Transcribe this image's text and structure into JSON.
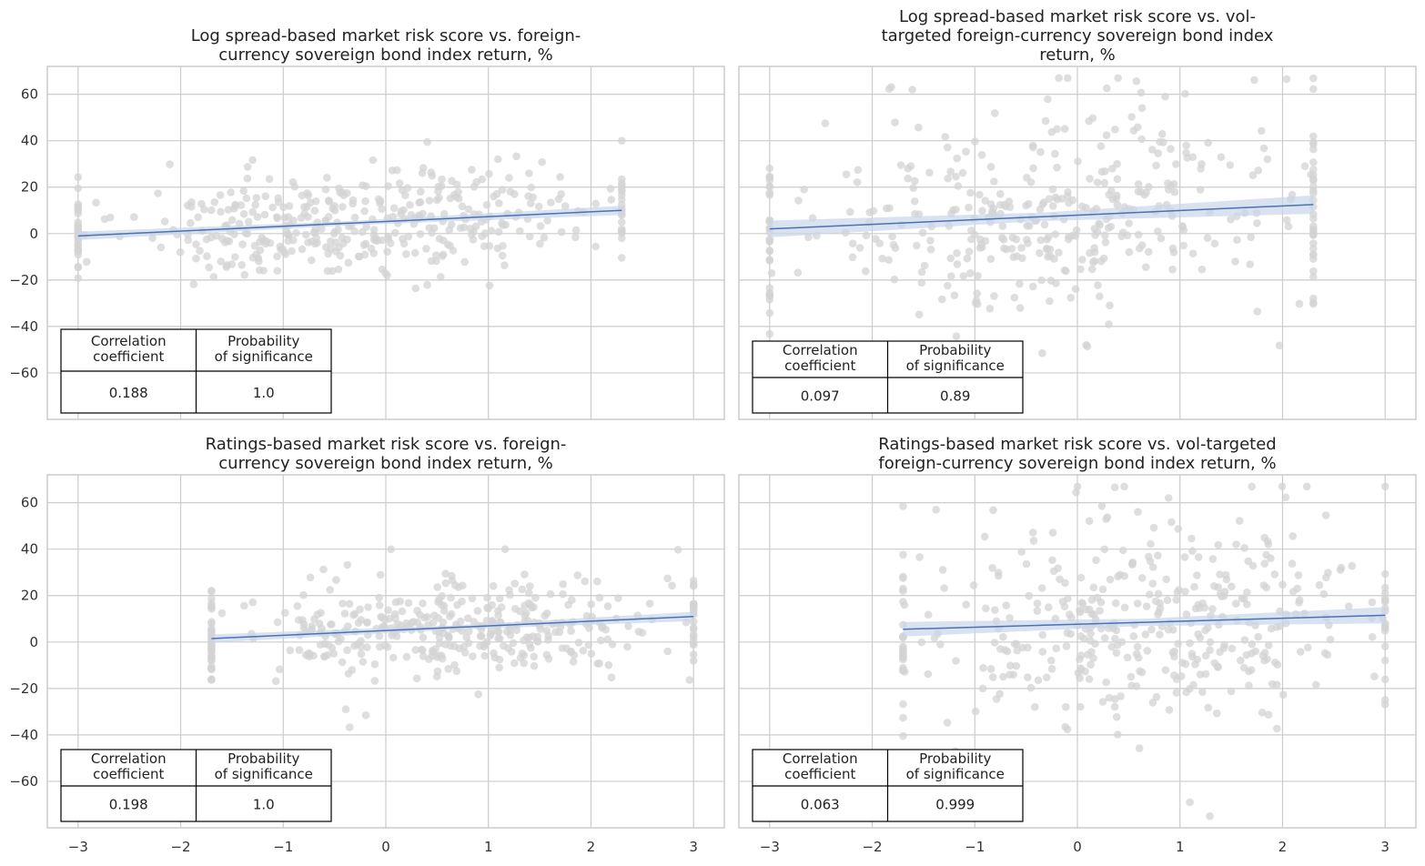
{
  "chart_data": [
    {
      "type": "scatter",
      "title": "Log spread-based market risk score vs. foreign-currency sovereign bond index return, %",
      "title_lines": [
        "Log spread-based market risk score vs. foreign-",
        "currency sovereign bond index return, %"
      ],
      "xlabel": "",
      "ylabel": "",
      "xlim": [
        -3.3,
        3.3
      ],
      "ylim": [
        -80,
        72
      ],
      "xticks": [
        -3,
        -2,
        -1,
        0,
        1,
        2,
        3
      ],
      "yticks": [
        -60,
        -40,
        -20,
        0,
        20,
        40,
        60
      ],
      "grid": true,
      "x_range": [
        -3,
        2.3
      ],
      "regression": {
        "x": [
          -3,
          2.3
        ],
        "y": [
          -1,
          10
        ],
        "ci": 2
      },
      "stats_table": {
        "headers": [
          [
            "Correlation",
            "coefficient"
          ],
          [
            "Probability",
            "of significance"
          ]
        ],
        "values": [
          "0.188",
          "1.0"
        ],
        "placement": "bottom-left"
      },
      "seed": 11
    },
    {
      "type": "scatter",
      "title": "Log spread-based market risk score vs. vol-targeted foreign-currency sovereign bond index return, %",
      "title_lines": [
        "Log spread-based market risk score vs. vol-",
        "targeted foreign-currency sovereign bond index",
        "return, %"
      ],
      "xlabel": "",
      "ylabel": "",
      "xlim": [
        -3.3,
        3.3
      ],
      "ylim": [
        -80,
        72
      ],
      "xticks": [
        -3,
        -2,
        -1,
        0,
        1,
        2,
        3
      ],
      "yticks": [
        -60,
        -40,
        -20,
        0,
        20,
        40,
        60
      ],
      "grid": true,
      "x_range": [
        -3,
        2.3
      ],
      "regression": {
        "x": [
          -3,
          2.3
        ],
        "y": [
          2,
          12.5
        ],
        "ci": 4
      },
      "stats_table": {
        "headers": [
          [
            "Correlation",
            "coefficient"
          ],
          [
            "Probability",
            "of significance"
          ]
        ],
        "values": [
          "0.097",
          "0.89"
        ],
        "placement": "bottom-left"
      },
      "seed": 23
    },
    {
      "type": "scatter",
      "title": "Ratings-based market risk score vs. foreign-currency sovereign bond index return, %",
      "title_lines": [
        "Ratings-based market risk score vs. foreign-",
        "currency sovereign bond index return, %"
      ],
      "xlabel": "",
      "ylabel": "",
      "xlim": [
        -3.3,
        3.3
      ],
      "ylim": [
        -80,
        72
      ],
      "xticks": [
        -3,
        -2,
        -1,
        0,
        1,
        2,
        3
      ],
      "yticks": [
        -60,
        -40,
        -20,
        0,
        20,
        40,
        60
      ],
      "grid": true,
      "x_range": [
        -1.7,
        3
      ],
      "regression": {
        "x": [
          -1.7,
          3
        ],
        "y": [
          1.5,
          11
        ],
        "ci": 2
      },
      "stats_table": {
        "headers": [
          [
            "Correlation",
            "coefficient"
          ],
          [
            "Probability",
            "of significance"
          ]
        ],
        "values": [
          "0.198",
          "1.0"
        ],
        "placement": "bottom-left"
      },
      "seed": 37
    },
    {
      "type": "scatter",
      "title": "Ratings-based market risk score vs. vol-targeted foreign-currency sovereign bond index return, %",
      "title_lines": [
        "Ratings-based market risk score vs. vol-targeted",
        "foreign-currency sovereign bond index return, %"
      ],
      "xlabel": "",
      "ylabel": "",
      "xlim": [
        -3.3,
        3.3
      ],
      "ylim": [
        -80,
        72
      ],
      "xticks": [
        -3,
        -2,
        -1,
        0,
        1,
        2,
        3
      ],
      "yticks": [
        -60,
        -40,
        -20,
        0,
        20,
        40,
        60
      ],
      "grid": true,
      "x_range": [
        -1.7,
        3
      ],
      "regression": {
        "x": [
          -1.7,
          3
        ],
        "y": [
          5.5,
          11.5
        ],
        "ci": 3.5
      },
      "stats_table": {
        "headers": [
          [
            "Correlation",
            "coefficient"
          ],
          [
            "Probability",
            "of significance"
          ]
        ],
        "values": [
          "0.063",
          "0.999"
        ],
        "placement": "bottom-left"
      },
      "seed": 51
    }
  ],
  "colors": {
    "points": "#d3d3d3",
    "line": "#4c72b0",
    "ci_band": "#c9d6ea",
    "grid": "#cccccc",
    "axes": "#cccccc",
    "table_border": "#000000"
  }
}
